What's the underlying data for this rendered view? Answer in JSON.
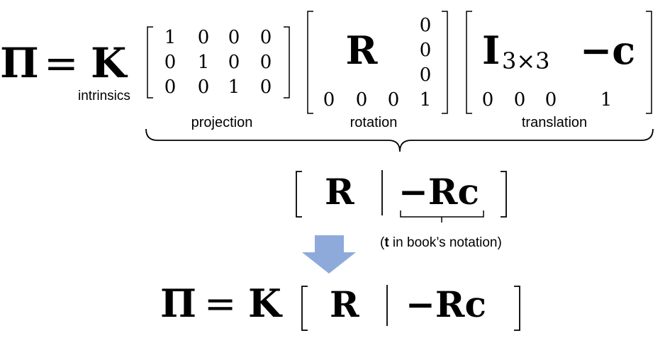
{
  "equation_top": {
    "lhs": "Π",
    "equals": "=",
    "k": "K",
    "k_label": "intrinsics",
    "projection": {
      "rows": [
        [
          "1",
          "0",
          "0",
          "0"
        ],
        [
          "0",
          "1",
          "0",
          "0"
        ],
        [
          "0",
          "0",
          "1",
          "0"
        ]
      ],
      "label": "projection"
    },
    "rotation": {
      "r": "R",
      "col": [
        "0",
        "0",
        "0"
      ],
      "bottom": [
        "0",
        "0",
        "0",
        "1"
      ],
      "label": "rotation"
    },
    "translation": {
      "i": "I",
      "i_sub": "3×3",
      "neg_c": "−c",
      "bottom": [
        "0",
        "0",
        "0",
        "1"
      ],
      "label": "translation"
    }
  },
  "middle": {
    "r": "R",
    "neg_rc": "−Rc",
    "note_t": "t",
    "note_rest": " in book’s notation)",
    "note_open": "("
  },
  "equation_bottom": {
    "lhs": "Π",
    "equals": "=",
    "k": "K",
    "r": "R",
    "neg_rc": "−Rc"
  },
  "colors": {
    "arrow": "#8EAADB",
    "ink": "#000000"
  }
}
